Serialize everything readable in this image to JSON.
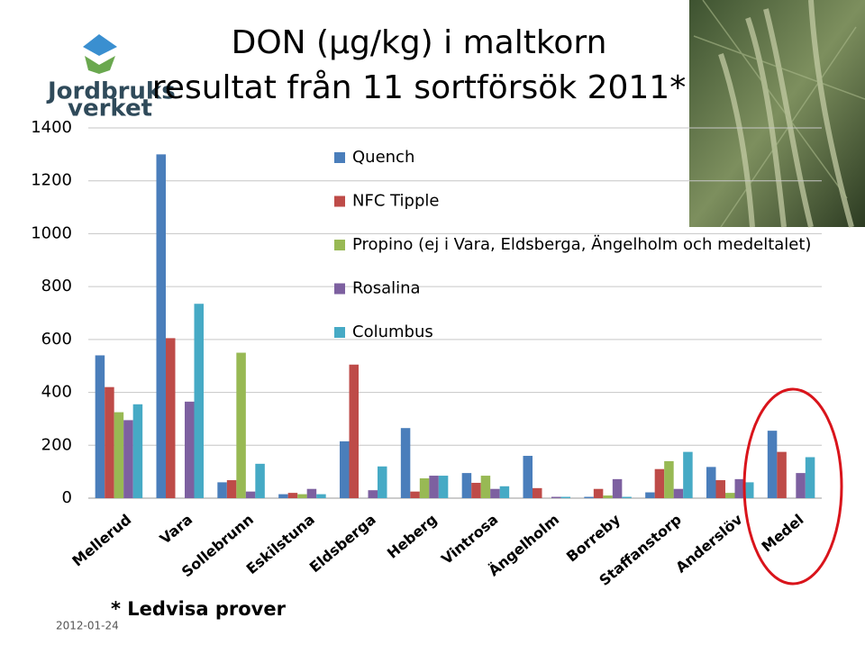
{
  "logo": [
    "Jordbruks",
    "verket"
  ],
  "date": "2012-01-24",
  "chart_data": {
    "type": "bar",
    "title": "DON (µg/kg) i maltkorn",
    "subtitle": "resultat från 11 sortförsök 2011*",
    "annotation": "* Ledvisa prover",
    "categories": [
      "Mellerud",
      "Vara",
      "Sollebrunn",
      "Eskilstuna",
      "Eldsberga",
      "Heberg",
      "Vintrosa",
      "Ängelholm",
      "Borreby",
      "Staffanstorp",
      "Anderslöv",
      "Medel"
    ],
    "series": [
      {
        "name": "Quench",
        "color": "#4a7ebb",
        "values": [
          540,
          1300,
          60,
          15,
          215,
          265,
          95,
          160,
          5,
          22,
          118,
          255
        ]
      },
      {
        "name": "NFC Tipple",
        "color": "#be4b48",
        "values": [
          420,
          605,
          68,
          20,
          505,
          25,
          58,
          38,
          35,
          110,
          68,
          175
        ]
      },
      {
        "name": "Propino (ej i Vara, Eldsberga, Ängelholm och medeltalet)",
        "color": "#98b954",
        "values": [
          325,
          null,
          550,
          15,
          null,
          75,
          85,
          null,
          10,
          140,
          20,
          null
        ]
      },
      {
        "name": "Rosalina",
        "color": "#7d60a0",
        "values": [
          295,
          365,
          25,
          35,
          30,
          85,
          35,
          5,
          72,
          35,
          72,
          95
        ]
      },
      {
        "name": "Columbus",
        "color": "#46aac5",
        "values": [
          355,
          735,
          130,
          15,
          120,
          85,
          45,
          5,
          5,
          175,
          60,
          155
        ]
      }
    ],
    "ylim": [
      0,
      1400
    ],
    "yticks": [
      0,
      200,
      400,
      600,
      800,
      1000,
      1200,
      1400
    ],
    "grid": true
  }
}
